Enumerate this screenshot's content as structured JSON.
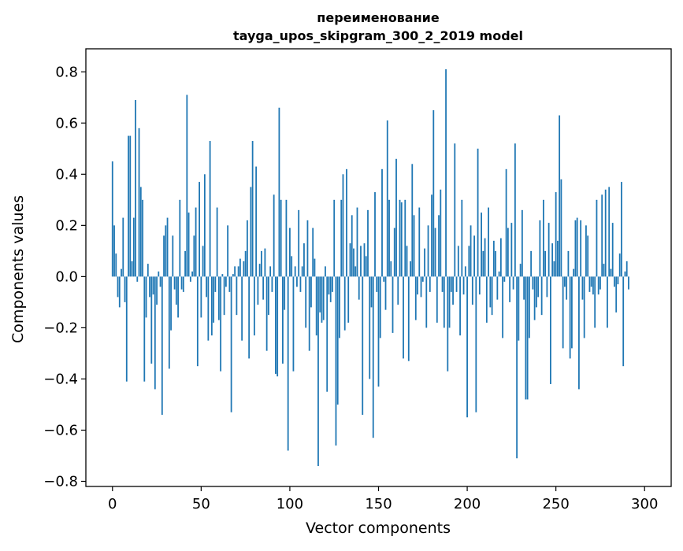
{
  "chart_data": {
    "type": "bar",
    "title_line1": "переименование",
    "title_line2": "tayga_upos_skipgram_300_2_2019 model",
    "xlabel": "Vector components",
    "ylabel": "Components values",
    "xlim": [
      -15,
      315
    ],
    "ylim": [
      -0.82,
      0.89
    ],
    "xticks": [
      0,
      50,
      100,
      150,
      200,
      250,
      300
    ],
    "xtick_labels": [
      "0",
      "50",
      "100",
      "150",
      "200",
      "250",
      "300"
    ],
    "yticks": [
      -0.8,
      -0.6,
      -0.4,
      -0.2,
      0.0,
      0.2,
      0.4,
      0.6,
      0.8
    ],
    "ytick_labels": [
      "−0.8",
      "−0.6",
      "−0.4",
      "−0.2",
      "0.0",
      "0.2",
      "0.4",
      "0.6",
      "0.8"
    ],
    "bar_color": "#1f77b4",
    "grid": false,
    "legend": "none",
    "values": [
      0.45,
      0.2,
      0.09,
      -0.08,
      -0.12,
      0.03,
      0.23,
      -0.1,
      -0.41,
      0.55,
      0.55,
      0.06,
      0.23,
      0.69,
      -0.02,
      0.58,
      0.35,
      0.3,
      -0.41,
      -0.16,
      0.05,
      -0.08,
      -0.34,
      -0.07,
      -0.44,
      -0.11,
      0.02,
      -0.04,
      -0.54,
      0.16,
      0.2,
      0.23,
      -0.36,
      -0.21,
      0.16,
      -0.05,
      -0.11,
      -0.16,
      0.3,
      -0.05,
      -0.06,
      0.1,
      0.71,
      0.25,
      -0.02,
      0.02,
      0.16,
      0.27,
      -0.35,
      0.37,
      -0.16,
      0.12,
      0.4,
      -0.08,
      -0.25,
      0.53,
      -0.23,
      -0.18,
      -0.06,
      0.27,
      -0.17,
      -0.37,
      0.01,
      -0.15,
      -0.04,
      0.2,
      -0.06,
      -0.53,
      0.01,
      0.04,
      -0.15,
      0.04,
      0.07,
      -0.25,
      0.06,
      0.1,
      0.22,
      -0.32,
      0.35,
      0.53,
      -0.23,
      0.43,
      -0.11,
      0.05,
      0.1,
      -0.09,
      0.11,
      -0.29,
      -0.15,
      0.04,
      -0.06,
      0.32,
      -0.38,
      -0.39,
      0.66,
      0.3,
      -0.34,
      -0.13,
      0.3,
      -0.68,
      0.19,
      0.08,
      -0.37,
      0.04,
      -0.04,
      0.26,
      -0.06,
      0.04,
      0.13,
      -0.2,
      0.22,
      -0.29,
      -0.12,
      0.19,
      0.07,
      -0.23,
      -0.74,
      -0.14,
      -0.18,
      -0.17,
      0.04,
      -0.45,
      -0.07,
      -0.1,
      -0.06,
      0.3,
      -0.66,
      -0.5,
      -0.24,
      0.3,
      0.4,
      -0.21,
      0.42,
      -0.18,
      0.13,
      0.24,
      0.11,
      0.04,
      0.27,
      -0.09,
      0.12,
      -0.54,
      0.13,
      0.08,
      0.26,
      -0.4,
      -0.12,
      -0.63,
      0.33,
      -0.06,
      -0.43,
      -0.24,
      0.42,
      -0.02,
      -0.13,
      0.61,
      0.3,
      0.06,
      -0.22,
      0.19,
      0.46,
      -0.11,
      0.3,
      0.29,
      -0.32,
      0.3,
      0.12,
      -0.33,
      0.06,
      0.44,
      0.24,
      -0.17,
      -0.07,
      0.27,
      -0.08,
      -0.02,
      0.11,
      -0.2,
      0.2,
      -0.06,
      0.32,
      0.65,
      0.19,
      -0.18,
      0.24,
      0.34,
      -0.06,
      -0.2,
      0.81,
      -0.37,
      -0.2,
      -0.06,
      -0.11,
      0.52,
      -0.06,
      0.12,
      -0.23,
      0.3,
      -0.07,
      0.04,
      -0.55,
      0.12,
      0.2,
      -0.11,
      0.16,
      -0.53,
      0.5,
      -0.07,
      0.25,
      0.1,
      0.15,
      -0.18,
      0.27,
      -0.12,
      -0.15,
      0.14,
      0.1,
      -0.09,
      0.02,
      0.15,
      -0.24,
      -0.02,
      0.42,
      0.19,
      -0.1,
      0.21,
      -0.05,
      0.52,
      -0.71,
      -0.25,
      0.05,
      0.26,
      -0.09,
      -0.48,
      -0.48,
      -0.24,
      0.1,
      -0.05,
      -0.17,
      -0.12,
      -0.08,
      0.22,
      -0.15,
      0.3,
      0.1,
      -0.08,
      0.21,
      -0.42,
      0.13,
      0.06,
      0.33,
      0.14,
      0.63,
      0.38,
      -0.28,
      -0.04,
      -0.09,
      0.1,
      -0.32,
      -0.28,
      0.03,
      0.22,
      0.23,
      -0.44,
      0.22,
      -0.09,
      -0.24,
      0.2,
      0.16,
      -0.06,
      -0.04,
      -0.07,
      -0.2,
      0.3,
      -0.07,
      -0.05,
      0.32,
      0.05,
      0.34,
      -0.2,
      0.35,
      0.03,
      0.21,
      -0.04,
      -0.14,
      -0.03,
      0.09,
      0.37,
      -0.35,
      0.02,
      0.06,
      -0.05
    ]
  }
}
